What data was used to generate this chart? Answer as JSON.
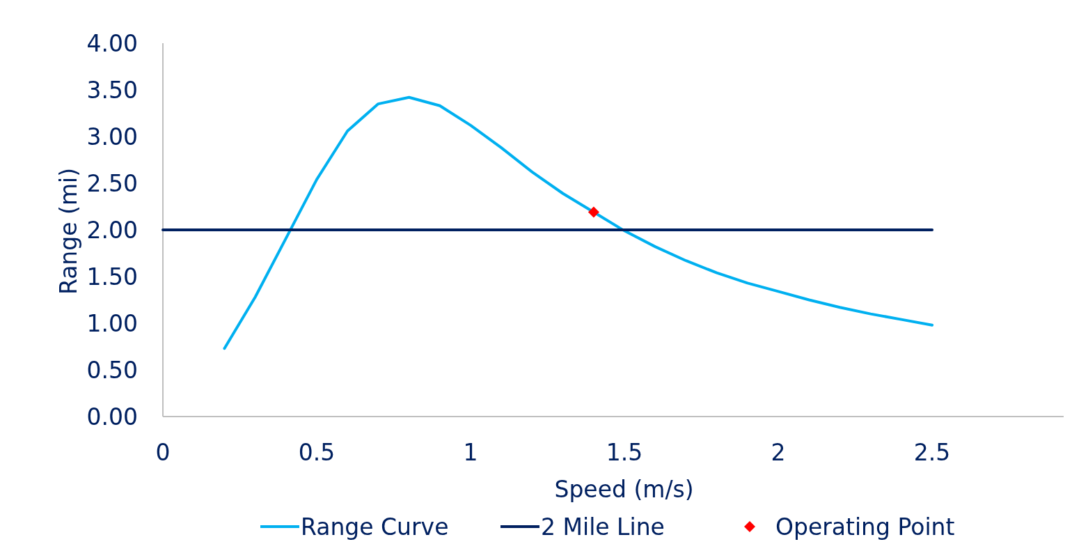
{
  "chart_data": {
    "type": "line",
    "xlabel": "Speed (m/s)",
    "ylabel": "Range (mi)",
    "xlim": [
      0,
      2.95
    ],
    "xticks": [
      0,
      0.5,
      1,
      1.5,
      2,
      2.5
    ],
    "ylim": [
      0,
      4
    ],
    "yticks": [
      {
        "value": 0,
        "label": "0.00"
      },
      {
        "value": 0.5,
        "label": "0.50"
      },
      {
        "value": 1,
        "label": "1.00"
      },
      {
        "value": 1.5,
        "label": "1.50"
      },
      {
        "value": 2,
        "label": "2.00"
      },
      {
        "value": 2.5,
        "label": "2.50"
      },
      {
        "value": 3,
        "label": "3.00"
      },
      {
        "value": 3.5,
        "label": "3.50"
      },
      {
        "value": 4,
        "label": "4.00"
      }
    ],
    "grid": false,
    "legend": "bottom",
    "series": [
      {
        "name": "Range Curve",
        "color": "#00b0f0",
        "marker": "none",
        "x": [
          0.2,
          0.3,
          0.4,
          0.5,
          0.6,
          0.7,
          0.8,
          0.9,
          1.0,
          1.1,
          1.2,
          1.3,
          1.4,
          1.5,
          1.6,
          1.7,
          1.8,
          1.9,
          2.0,
          2.1,
          2.2,
          2.3,
          2.4,
          2.5
        ],
        "values": [
          0.73,
          1.28,
          1.91,
          2.54,
          3.06,
          3.35,
          3.42,
          3.33,
          3.12,
          2.88,
          2.62,
          2.39,
          2.19,
          1.99,
          1.82,
          1.67,
          1.54,
          1.43,
          1.34,
          1.25,
          1.17,
          1.1,
          1.04,
          0.98
        ]
      },
      {
        "name": "2 Mile Line",
        "color": "#002060",
        "marker": "none",
        "x": [
          0,
          2.5
        ],
        "values": [
          2,
          2
        ]
      },
      {
        "name": "Operating Point",
        "type": "scatter",
        "color": "#ff0000",
        "marker": "diamond",
        "x": [
          1.4
        ],
        "values": [
          2.19
        ]
      }
    ]
  }
}
